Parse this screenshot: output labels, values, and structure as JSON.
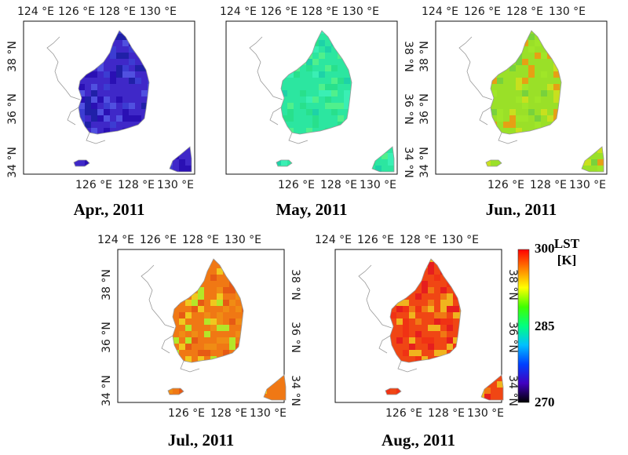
{
  "panels": [
    {
      "title": "Apr., 2011",
      "mean_color": "#3f28c8",
      "fill_mix": [
        "#2a10b4",
        "#3c3cd2",
        "#5050e0",
        "#2020a8"
      ]
    },
    {
      "title": "May, 2011",
      "mean_color": "#2ce6a0",
      "fill_mix": [
        "#28e08c",
        "#3aefb4",
        "#1ed2a8",
        "#50f08c"
      ]
    },
    {
      "title": "Jun., 2011",
      "mean_color": "#9ae028",
      "fill_mix": [
        "#a0e628",
        "#c8e01e",
        "#78d23c",
        "#e6a014"
      ]
    },
    {
      "title": "Jul., 2011",
      "mean_color": "#f07814",
      "fill_mix": [
        "#f08c14",
        "#e65a14",
        "#f0c81e",
        "#b4e628"
      ]
    },
    {
      "title": "Aug., 2011",
      "mean_color": "#f04614",
      "fill_mix": [
        "#f03214",
        "#e61e1e",
        "#f07814",
        "#f0b41e"
      ]
    }
  ],
  "axes": {
    "top_ticks": [
      "124 °E",
      "126 °E",
      "128 °E",
      "130 °E"
    ],
    "bottom_ticks": [
      "126 °E",
      "128 °E",
      "130 °E"
    ],
    "left_ticks": [
      "38 °N",
      "36 °N",
      "34 °N"
    ],
    "right_ticks": [
      "38 °N",
      "36 °N",
      "34 °N"
    ]
  },
  "colorbar": {
    "label_line1": "LST",
    "label_line2": "[K]",
    "max": "300",
    "mid": "285",
    "min": "270",
    "stops": [
      "#ff0000",
      "#ff8000",
      "#ffff00",
      "#40ff00",
      "#00ff80",
      "#00c0ff",
      "#0040ff",
      "#4000c0",
      "#000000"
    ]
  }
}
